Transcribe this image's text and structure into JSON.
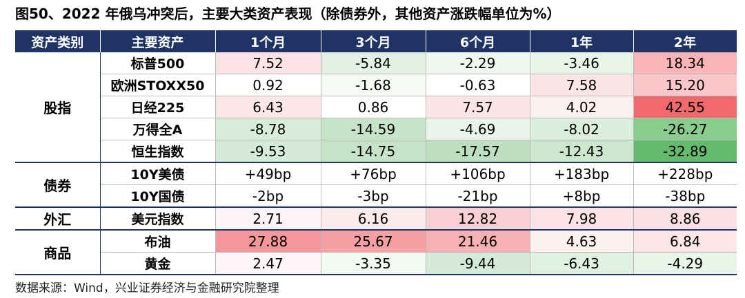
{
  "title": "图50、2022 年俄乌冲突后，主要大类资产表现（除债券外，其他资产涨跌幅单位为%）",
  "table": {
    "header": [
      "资产类别",
      "主要资产",
      "1个月",
      "3个月",
      "6个月",
      "1年",
      "2年"
    ],
    "groups": [
      {
        "name": "股指",
        "rows": [
          {
            "asset": "标普500",
            "values": [
              "7.52",
              "-5.84",
              "-2.29",
              "-3.46",
              "18.34"
            ]
          },
          {
            "asset": "欧洲STOXX50",
            "values": [
              "0.92",
              "-1.68",
              "-0.63",
              "7.58",
              "15.20"
            ]
          },
          {
            "asset": "日经225",
            "values": [
              "6.43",
              "0.86",
              "7.57",
              "4.02",
              "42.55"
            ]
          },
          {
            "asset": "万得全A",
            "values": [
              "-8.78",
              "-14.59",
              "-4.69",
              "-8.02",
              "-26.27"
            ]
          },
          {
            "asset": "恒生指数",
            "values": [
              "-9.53",
              "-14.75",
              "-17.57",
              "-12.43",
              "-32.89"
            ]
          }
        ]
      },
      {
        "name": "债券",
        "rows": [
          {
            "asset": "10Y美债",
            "values": [
              "+49bp",
              "+76bp",
              "+106bp",
              "+183bp",
              "+228bp"
            ]
          },
          {
            "asset": "10Y国债",
            "values": [
              "-2bp",
              "-3bp",
              "-21bp",
              "+8bp",
              "-38bp"
            ]
          }
        ]
      },
      {
        "name": "外汇",
        "rows": [
          {
            "asset": "美元指数",
            "values": [
              "2.71",
              "6.16",
              "12.82",
              "7.98",
              "8.86"
            ]
          }
        ]
      },
      {
        "name": "商品",
        "rows": [
          {
            "asset": "布油",
            "values": [
              "27.88",
              "25.67",
              "21.46",
              "4.63",
              "6.84"
            ]
          },
          {
            "asset": "黄金",
            "values": [
              "2.47",
              "-3.35",
              "-9.44",
              "-6.43",
              "-4.29"
            ]
          }
        ]
      }
    ]
  },
  "source": "数据来源：Wind，兴业证券经济与金融研究院整理"
}
